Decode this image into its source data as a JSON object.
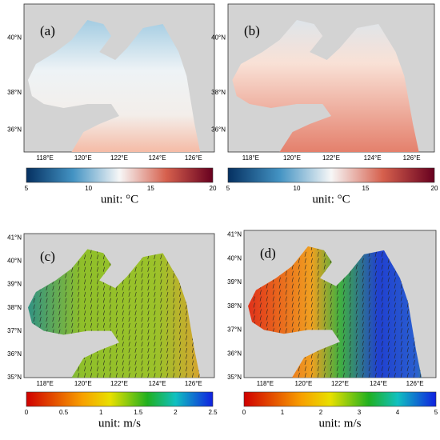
{
  "panels": [
    {
      "label": "(a)",
      "lat_labels": [
        "40°N",
        "38°N",
        "36°N"
      ],
      "lon_labels": [
        "118°E",
        "120°E",
        "122°E",
        "124°E",
        "126°E"
      ],
      "colorbar_ticks": [
        5,
        10,
        15,
        20
      ],
      "unit": "unit: °C"
    },
    {
      "label": "(b)",
      "lat_labels": [
        "40°N",
        "38°N",
        "36°N"
      ],
      "lon_labels": [
        "118°E",
        "120°E",
        "122°E",
        "124°E",
        "126°E"
      ],
      "colorbar_ticks": [
        5,
        10,
        15,
        20
      ],
      "unit": "unit: °C"
    },
    {
      "label": "(c)",
      "lat_labels": [
        "41°N",
        "40°N",
        "39°N",
        "38°N",
        "37°N",
        "36°N",
        "35°N"
      ],
      "lon_labels": [
        "118°E",
        "120°E",
        "122°E",
        "124°E",
        "126°E"
      ],
      "colorbar_ticks": [
        0,
        0.5,
        1,
        1.5,
        2,
        2.5
      ],
      "unit": "unit: m/s"
    },
    {
      "label": "(d)",
      "lat_labels": [
        "41°N",
        "40°N",
        "39°N",
        "38°N",
        "37°N",
        "36°N",
        "35°N"
      ],
      "lon_labels": [
        "118°E",
        "120°E",
        "122°E",
        "124°E",
        "126°E"
      ],
      "colorbar_ticks": [
        0,
        1,
        2,
        3,
        4,
        5
      ],
      "unit": "unit: m/s"
    }
  ]
}
